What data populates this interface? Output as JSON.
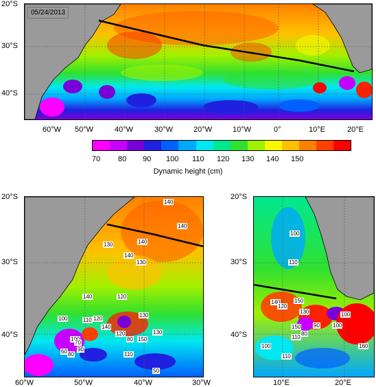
{
  "date_label": "05/24/2013",
  "colorbar": {
    "title": "Dynamic height (cm)",
    "ticks": [
      "70",
      "80",
      "90",
      "100",
      "110",
      "120",
      "130",
      "140",
      "150"
    ],
    "colors": [
      "#ff00ff",
      "#c800ff",
      "#7a00d8",
      "#2020e0",
      "#0060ff",
      "#00a8ff",
      "#00e8f0",
      "#00e890",
      "#30e030",
      "#a0f000",
      "#f8f800",
      "#ffc000",
      "#ff8000",
      "#ff4000",
      "#ff0000"
    ]
  },
  "top_map": {
    "lat_labels": [
      "20°S",
      "30°S",
      "40°S"
    ],
    "lon_labels": [
      "60°W",
      "50°W",
      "40°W",
      "30°W",
      "20°W",
      "10°W",
      "0°",
      "10°E",
      "20°E"
    ]
  },
  "left_map": {
    "lat_labels": [
      "20°S",
      "30°S",
      "40°S"
    ],
    "lon_labels": [
      "60°W",
      "50°W",
      "40°W",
      "30°W"
    ],
    "contour_labels": [
      "140",
      "140",
      "130",
      "140",
      "140",
      "130",
      "120",
      "140",
      "100",
      "110",
      "120",
      "130",
      "140",
      "120",
      "130",
      "150",
      "80",
      "100",
      "110",
      "90",
      "80",
      "60",
      "70",
      "50"
    ]
  },
  "right_map": {
    "lat_labels": [
      "20°S",
      "30°S",
      "40°S"
    ],
    "lon_labels": [
      "10°E",
      "20°E"
    ],
    "contour_labels": [
      "100",
      "110",
      "140",
      "150",
      "120",
      "130",
      "100",
      "100",
      "150",
      "80",
      "90",
      "110",
      "160",
      "100",
      "110"
    ]
  }
}
